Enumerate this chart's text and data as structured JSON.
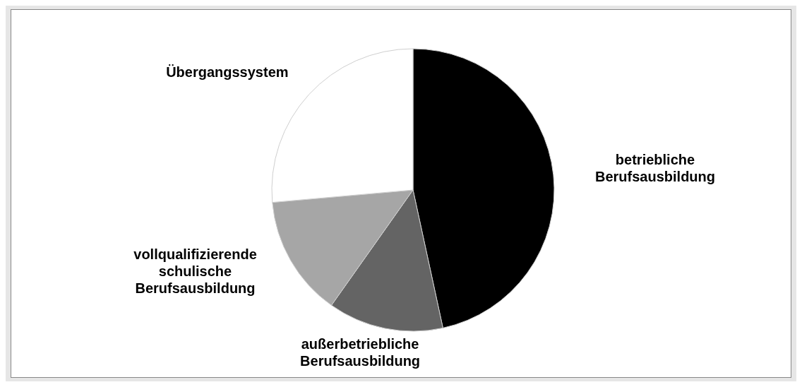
{
  "chart_data": {
    "type": "pie",
    "categories": [
      "betriebliche Berufsausbildung",
      "außerbetriebliche Berufsausbildung",
      "vollqualifizierende schulische Berufsausbildung",
      "Übergangssystem"
    ],
    "values": [
      46.6,
      13.2,
      13.8,
      26.4
    ],
    "colors": [
      "#000000",
      "#646464",
      "#a6a6a6",
      "#ffffff"
    ]
  }
}
